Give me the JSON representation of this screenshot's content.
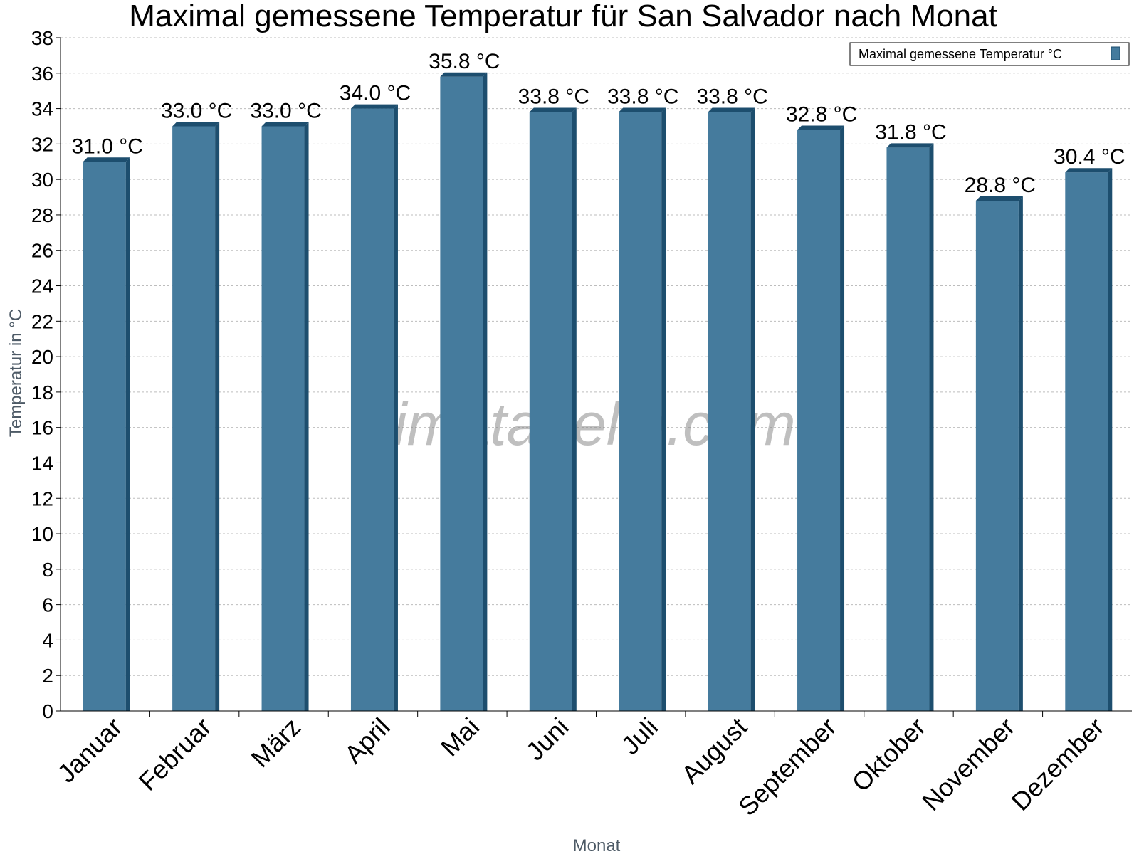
{
  "chart_data": {
    "type": "bar",
    "title": "Maximal gemessene Temperatur für San Salvador nach Monat",
    "xlabel": "Monat",
    "ylabel": "Temperatur in °C",
    "ylim": [
      0,
      38
    ],
    "ytick_step": 2,
    "grid": true,
    "legend_position": "top-right",
    "categories": [
      "Januar",
      "Februar",
      "März",
      "April",
      "Mai",
      "Juni",
      "Juli",
      "August",
      "September",
      "Oktober",
      "November",
      "Dezember"
    ],
    "series": [
      {
        "name": "Maximal gemessene Temperatur °C",
        "values": [
          31.0,
          33.0,
          33.0,
          34.0,
          35.8,
          33.8,
          33.8,
          33.8,
          32.8,
          31.8,
          28.8,
          30.4
        ],
        "labels": [
          "31.0 °C",
          "33.0 °C",
          "33.0 °C",
          "34.0 °C",
          "35.8 °C",
          "33.8 °C",
          "33.8 °C",
          "33.8 °C",
          "32.8 °C",
          "31.8 °C",
          "28.8 °C",
          "30.4 °C"
        ],
        "color": "#457b9d",
        "edge_color": "#1d4e6e"
      }
    ],
    "watermark": "klimatabelle.com"
  }
}
